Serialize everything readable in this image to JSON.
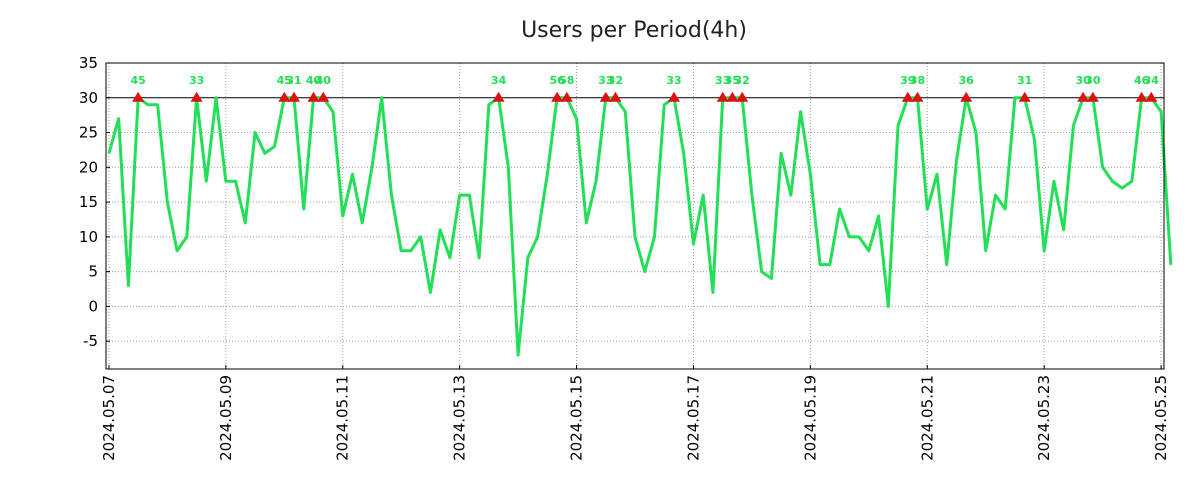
{
  "colors": {
    "line": "#22e055",
    "marker": "#dd1111",
    "threshold": "#000000",
    "grid": "#a0a0a0"
  },
  "chart_data": {
    "type": "line",
    "title": "Users per Period(4h)",
    "xlabel": "",
    "ylabel": "",
    "ylim": [
      -9,
      35
    ],
    "yticks": [
      -5,
      0,
      5,
      10,
      15,
      20,
      25,
      30,
      35
    ],
    "threshold": 30,
    "x_start_date": "2024.05.07",
    "x_step_days": 0.16667,
    "xlim": [
      -0.3,
      108.3
    ],
    "xticks": [
      {
        "label": "2024.05.07",
        "index": 0
      },
      {
        "label": "2024.05.09",
        "index": 12
      },
      {
        "label": "2024.05.11",
        "index": 24
      },
      {
        "label": "2024.05.13",
        "index": 36
      },
      {
        "label": "2024.05.15",
        "index": 48
      },
      {
        "label": "2024.05.17",
        "index": 60
      },
      {
        "label": "2024.05.19",
        "index": 72
      },
      {
        "label": "2024.05.21",
        "index": 84
      },
      {
        "label": "2024.05.23",
        "index": 96
      },
      {
        "label": "2024.05.25",
        "index": 108
      }
    ],
    "series": [
      {
        "name": "Users",
        "values": [
          22,
          27,
          3,
          45,
          29,
          29,
          15,
          8,
          10,
          33,
          18,
          30,
          18,
          18,
          12,
          25,
          22,
          23,
          45,
          31,
          14,
          40,
          40,
          28,
          13,
          19,
          12,
          20,
          30,
          16,
          8,
          8,
          10,
          2,
          11,
          7,
          16,
          16,
          7,
          29,
          34,
          20,
          -7,
          7,
          10,
          19,
          56,
          58,
          27,
          12,
          18,
          33,
          32,
          28,
          10,
          5,
          10,
          29,
          33,
          22,
          9,
          16,
          2,
          33,
          35,
          32,
          16,
          5,
          4,
          22,
          16,
          28,
          19,
          6,
          6,
          14,
          10,
          10,
          8,
          13,
          0,
          26,
          39,
          38,
          14,
          19,
          6,
          21,
          36,
          25,
          8,
          16,
          14,
          31,
          31,
          24,
          8,
          18,
          11,
          26,
          30,
          30,
          20,
          18,
          17,
          18,
          46,
          34,
          28,
          6
        ]
      }
    ],
    "peak_labels": [
      {
        "index": 3,
        "label": "45"
      },
      {
        "index": 9,
        "label": "33"
      },
      {
        "index": 18,
        "label": "45"
      },
      {
        "index": 19,
        "label": "31"
      },
      {
        "index": 21,
        "label": "40"
      },
      {
        "index": 22,
        "label": "40"
      },
      {
        "index": 40,
        "label": "34"
      },
      {
        "index": 46,
        "label": "56"
      },
      {
        "index": 47,
        "label": "58"
      },
      {
        "index": 51,
        "label": "33"
      },
      {
        "index": 52,
        "label": "32"
      },
      {
        "index": 58,
        "label": "33"
      },
      {
        "index": 63,
        "label": "33"
      },
      {
        "index": 64,
        "label": "35"
      },
      {
        "index": 65,
        "label": "32"
      },
      {
        "index": 82,
        "label": "39"
      },
      {
        "index": 83,
        "label": "38"
      },
      {
        "index": 88,
        "label": "36"
      },
      {
        "index": 94,
        "label": "31"
      },
      {
        "index": 100,
        "label": "30"
      },
      {
        "index": 101,
        "label": "30"
      },
      {
        "index": 106,
        "label": "46"
      },
      {
        "index": 107,
        "label": "34"
      }
    ]
  }
}
